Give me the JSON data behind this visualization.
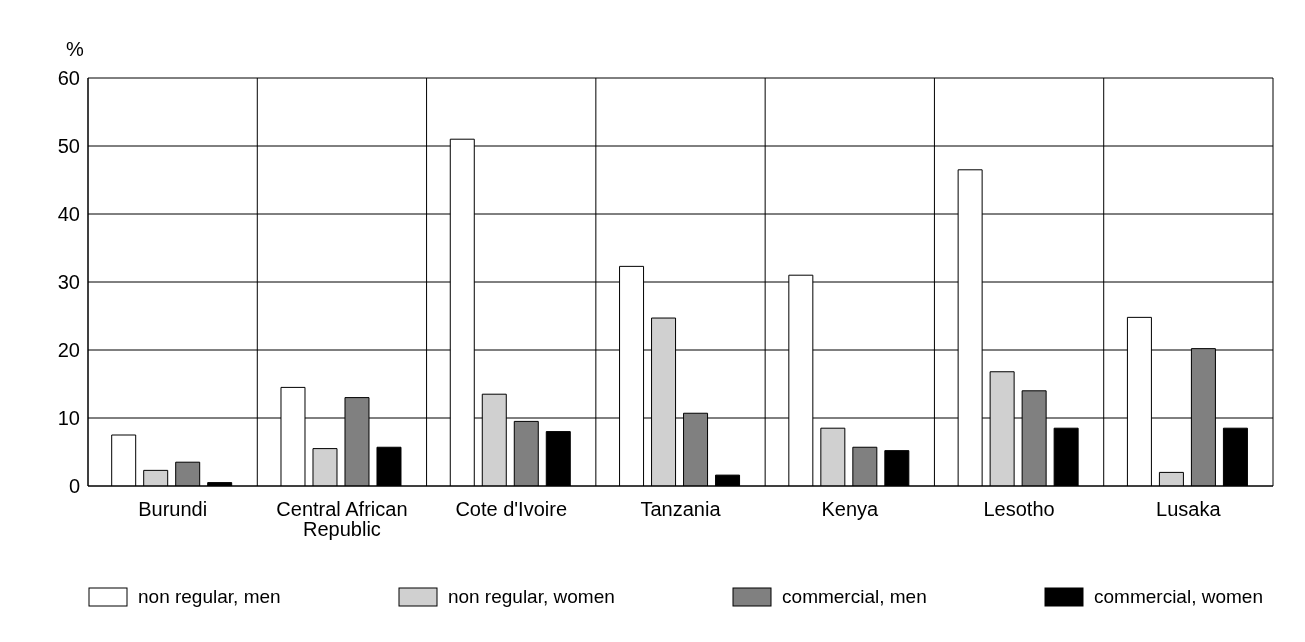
{
  "chart_data": {
    "type": "bar",
    "ylabel": "%",
    "categories": [
      "Burundi",
      "Central African Republic",
      "Cote d'Ivoire",
      "Tanzania",
      "Kenya",
      "Lesotho",
      "Lusaka"
    ],
    "series": [
      {
        "name": "non regular, men",
        "color": "#ffffff",
        "values": [
          7.5,
          14.5,
          51,
          32.3,
          31,
          46.5,
          24.8
        ]
      },
      {
        "name": "non regular, women",
        "color": "#d0d0d0",
        "values": [
          2.3,
          5.5,
          13.5,
          24.7,
          8.5,
          16.8,
          2
        ]
      },
      {
        "name": "commercial, men",
        "color": "#808080",
        "values": [
          3.5,
          13,
          9.5,
          10.7,
          5.7,
          14,
          20.2
        ]
      },
      {
        "name": "commercial, women",
        "color": "#000000",
        "values": [
          0.5,
          5.7,
          8,
          1.6,
          5.2,
          8.5,
          8.5
        ]
      }
    ],
    "ylim": [
      0,
      60
    ],
    "yticks": [
      0,
      10,
      20,
      30,
      40,
      50,
      60
    ],
    "grid": true,
    "legend": "bottom"
  }
}
